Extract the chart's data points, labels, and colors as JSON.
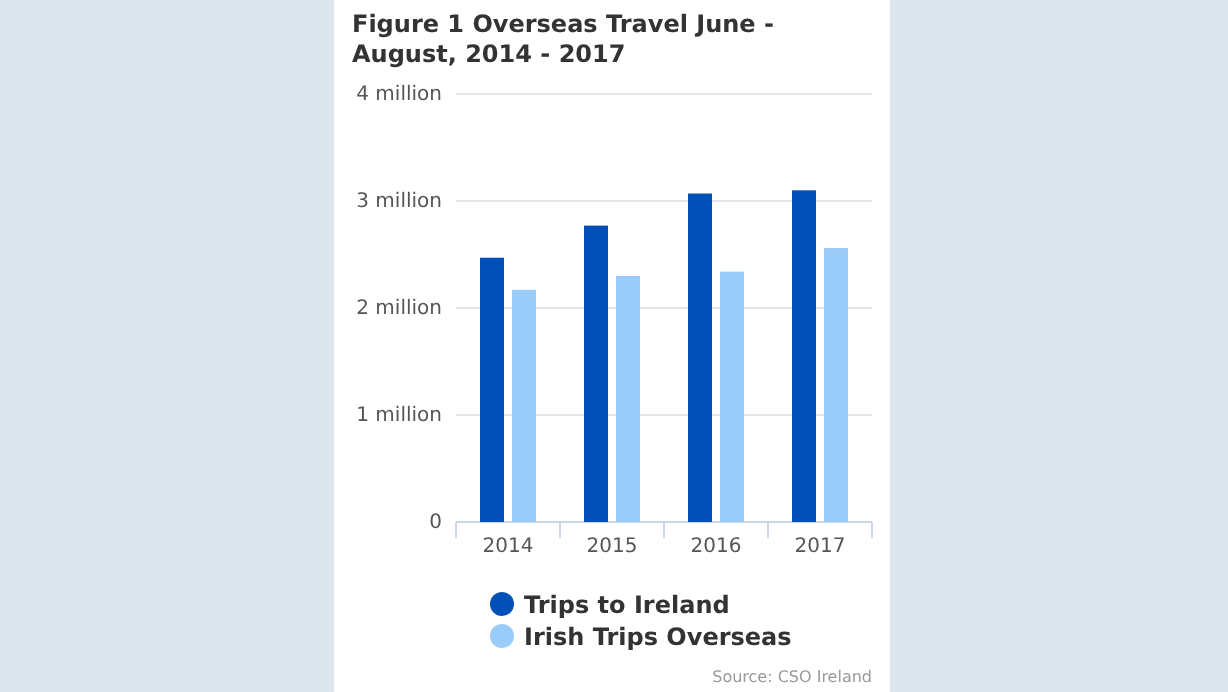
{
  "chart_data": {
    "type": "bar",
    "title": "Figure 1 Overseas Travel June - August, 2014 - 2017",
    "categories": [
      "2014",
      "2015",
      "2016",
      "2017"
    ],
    "series": [
      {
        "name": "Trips to Ireland",
        "color": "#0050b8",
        "values": [
          2.47,
          2.77,
          3.07,
          3.1
        ]
      },
      {
        "name": "Irish Trips Overseas",
        "color": "#99ccf9",
        "values": [
          2.17,
          2.3,
          2.34,
          2.56
        ]
      }
    ],
    "ylim": [
      0,
      4
    ],
    "yticks": [
      0,
      {
        "value": 1,
        "label": "1 million"
      },
      {
        "value": 2,
        "label": "2 million"
      },
      {
        "value": 3,
        "label": "3 million"
      },
      {
        "value": 4,
        "label": "4 million"
      }
    ],
    "grid": "y",
    "legend": "bottom",
    "annotations": [
      "Source: CSO Ireland"
    ]
  }
}
